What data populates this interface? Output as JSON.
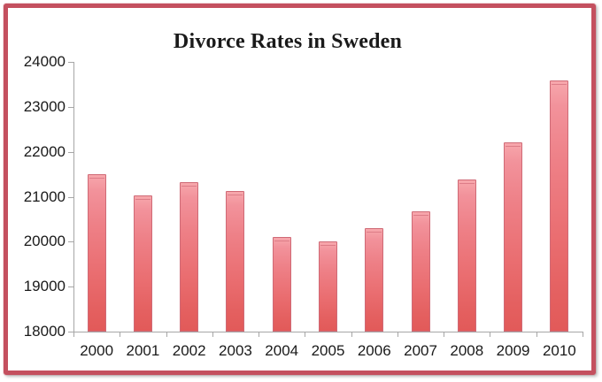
{
  "window": {
    "description": "Framed statistical bar chart image"
  },
  "colors": {
    "frame_border": "#c4505f",
    "axis": "#a6a6a6",
    "text": "#1a1a1a",
    "bar_top": "#f7a7ac",
    "bar_bottom": "#e25a59",
    "bar_border": "#cf6a76",
    "background": "#ffffff"
  },
  "chart_data": {
    "type": "bar",
    "title": "Divorce Rates in Sweden",
    "categories": [
      "2000",
      "2001",
      "2002",
      "2003",
      "2004",
      "2005",
      "2006",
      "2007",
      "2008",
      "2009",
      "2010"
    ],
    "values": [
      21500,
      21030,
      21320,
      21130,
      20110,
      20000,
      20300,
      20670,
      21380,
      22210,
      23590
    ],
    "xlabel": "",
    "ylabel": "",
    "ylim": [
      18000,
      24000
    ],
    "ytick_interval": 1000,
    "ytick_labels": [
      "24000",
      "23000",
      "22000",
      "21000",
      "20000",
      "19000",
      "18000"
    ],
    "grid": false,
    "legend": null,
    "series_color": "salmon-red gradient bars with dark rose border"
  }
}
